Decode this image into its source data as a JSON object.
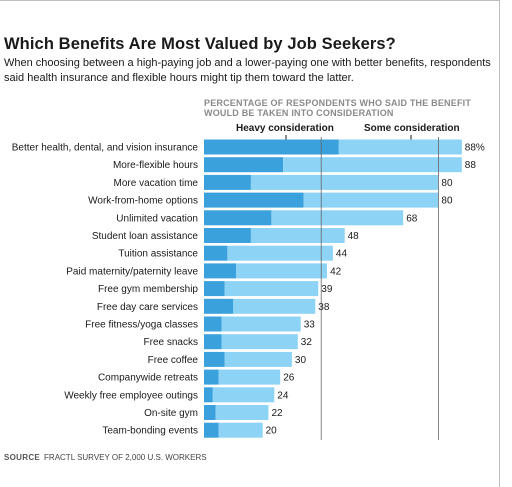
{
  "title": "Which Benefits Are Most Valued by Job Seekers?",
  "subtitle": "When choosing between a high-paying job and a lower-paying one with better benefits, respondents said health insurance and flexible hours might tip them toward the latter.",
  "source_label": "SOURCE",
  "source_text": "FRACTL SURVEY OF 2,000 U.S. WORKERS",
  "colors": {
    "heavy": "#3aa1dc",
    "some": "#8dd3f6",
    "gridline": "#666666",
    "text": "#1a1a1a",
    "header": "#8a8a8a"
  },
  "chart_data": {
    "type": "bar",
    "orientation": "horizontal",
    "stacked": true,
    "header_lines": [
      "PERCENTAGE OF RESPONDENTS WHO SAID THE BENEFIT",
      "WOULD BE TAKEN INTO CONSIDERATION"
    ],
    "categories": [
      "Better health, dental, and vision insurance",
      "More-flexible hours",
      "More vacation time",
      "Work-from-home options",
      "Unlimited vacation",
      "Student loan assistance",
      "Tuition assistance",
      "Paid maternity/paternity leave",
      "Free gym membership",
      "Free day care services",
      "Free fitness/yoga classes",
      "Free snacks",
      "Free coffee",
      "Companywide retreats",
      "Weekly free employee outings",
      "On-site gym",
      "Team-bonding events"
    ],
    "series": [
      {
        "name": "Heavy consideration",
        "values": [
          46,
          27,
          16,
          34,
          23,
          16,
          8,
          11,
          7,
          10,
          6,
          6,
          7,
          5,
          3,
          4,
          5
        ]
      },
      {
        "name": "Some consideration",
        "values": [
          42,
          61,
          64,
          46,
          45,
          32,
          36,
          31,
          32,
          28,
          27,
          26,
          23,
          21,
          21,
          18,
          15
        ]
      }
    ],
    "totals": [
      88,
      88,
      80,
      80,
      68,
      48,
      44,
      42,
      39,
      38,
      33,
      32,
      30,
      26,
      24,
      22,
      20
    ],
    "total_labels": [
      "88%",
      "88",
      "80",
      "80",
      "68",
      "48",
      "44",
      "42",
      "39",
      "38",
      "33",
      "32",
      "30",
      "26",
      "24",
      "22",
      "20"
    ],
    "xlim": [
      0,
      100
    ],
    "reference_lines": [
      40,
      80
    ]
  }
}
